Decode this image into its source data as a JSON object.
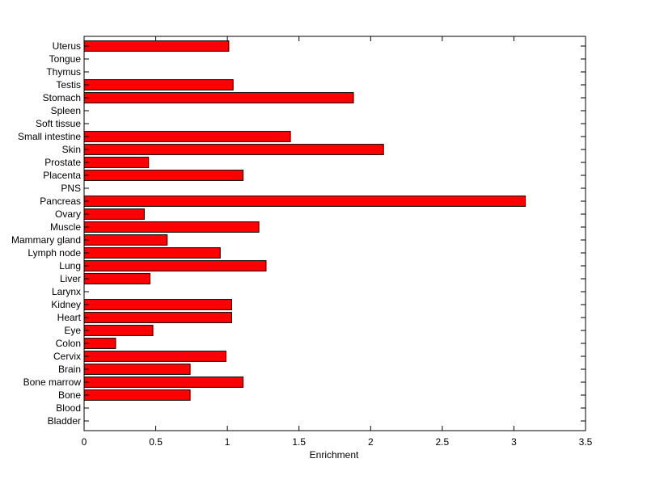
{
  "chart_data": {
    "type": "bar",
    "orientation": "horizontal",
    "title": "",
    "xlabel": "Enrichment",
    "ylabel": "",
    "xlim": [
      0,
      3.5
    ],
    "xticks": [
      0,
      0.5,
      1,
      1.5,
      2,
      2.5,
      3,
      3.5
    ],
    "xtick_labels": [
      "0",
      "0.5",
      "1",
      "1.5",
      "2",
      "2.5",
      "3",
      "3.5"
    ],
    "categories": [
      "Uterus",
      "Tongue",
      "Thymus",
      "Testis",
      "Stomach",
      "Spleen",
      "Soft tissue",
      "Small intestine",
      "Skin",
      "Prostate",
      "Placenta",
      "PNS",
      "Pancreas",
      "Ovary",
      "Muscle",
      "Mammary gland",
      "Lymph node",
      "Lung",
      "Liver",
      "Larynx",
      "Kidney",
      "Heart",
      "Eye",
      "Colon",
      "Cervix",
      "Brain",
      "Bone marrow",
      "Bone",
      "Blood",
      "Bladder"
    ],
    "values": [
      1.01,
      0,
      0,
      1.04,
      1.88,
      0,
      0,
      1.44,
      2.09,
      0.45,
      1.11,
      0,
      3.08,
      0.42,
      1.22,
      0.58,
      0.95,
      1.27,
      0.46,
      0,
      1.03,
      1.03,
      0.48,
      0.22,
      0.99,
      0.74,
      1.11,
      0.74,
      0,
      0
    ],
    "bar_color": "#ff0000",
    "edge_color": "#000000",
    "grid": false,
    "legend": "none"
  }
}
